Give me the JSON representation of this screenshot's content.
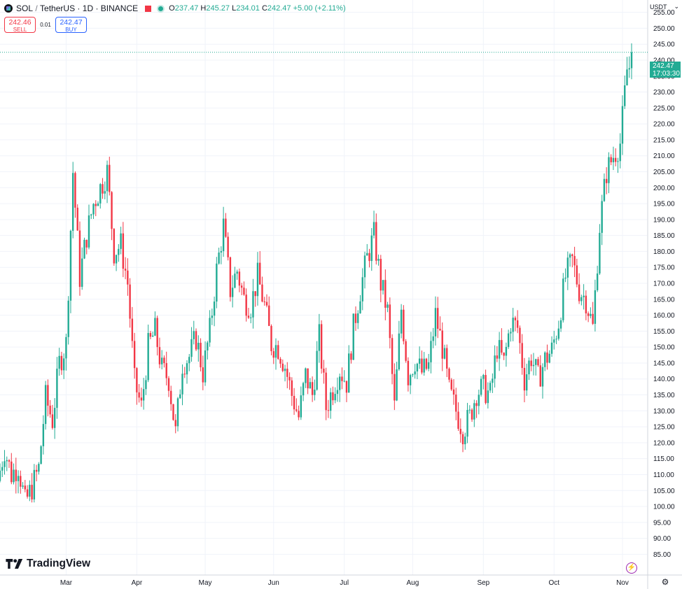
{
  "header": {
    "symbol": "SOL",
    "quote": "TetherUS",
    "interval": "1D",
    "exchange": "BINANCE",
    "sep1": "/",
    "sep2": "·",
    "sep3": "·",
    "open_key": "O",
    "open": "237.47",
    "high_key": "H",
    "high": "245.27",
    "low_key": "L",
    "low": "234.01",
    "close_key": "C",
    "close": "242.47",
    "change": "+5.00 (+2.11%)"
  },
  "trade": {
    "sell_price": "242.46",
    "sell_label": "SELL",
    "spread": "0.01",
    "buy_price": "242.47",
    "buy_label": "BUY"
  },
  "currency": "USDT",
  "last_price": "242.47",
  "countdown": "17:03:30",
  "branding": "TradingView",
  "icons": {
    "symbol": "solana-logo-icon",
    "flag": "flag-icon",
    "status": "market-open-dot-icon",
    "currency_menu": "chevron-down-icon",
    "bolt": "lightning-icon",
    "settings": "gear-icon",
    "logo": "tradingview-logo-icon"
  },
  "colors": {
    "up": "#22ab94",
    "down": "#f23645",
    "grid": "#f0f3fa",
    "axis_text": "#131722",
    "price_line": "#22ab94"
  },
  "chart_data": {
    "type": "candlestick",
    "y_ticks": [
      85,
      90,
      95,
      100,
      105,
      110,
      115,
      120,
      125,
      130,
      135,
      140,
      145,
      150,
      155,
      160,
      165,
      170,
      175,
      180,
      185,
      190,
      195,
      200,
      205,
      210,
      215,
      220,
      225,
      230,
      235,
      240,
      245,
      250,
      255
    ],
    "ylim": [
      83,
      259
    ],
    "x_ticks": [
      "Mar",
      "Apr",
      "May",
      "Jun",
      "Jul",
      "Aug",
      "Sep",
      "Oct",
      "Nov"
    ],
    "x_range_days": [
      0,
      280
    ],
    "x_tick_days": [
      29,
      60,
      90,
      120,
      151,
      181,
      212,
      243,
      273
    ],
    "grid": true,
    "series": [
      {
        "day": 0,
        "close": 108
      },
      {
        "day": 3,
        "close": 118
      },
      {
        "day": 6,
        "close": 110
      },
      {
        "day": 9,
        "close": 113
      },
      {
        "day": 12,
        "close": 101
      },
      {
        "day": 15,
        "close": 106
      },
      {
        "day": 18,
        "close": 112
      },
      {
        "day": 21,
        "close": 134
      },
      {
        "day": 24,
        "close": 127
      },
      {
        "day": 27,
        "close": 145
      },
      {
        "day": 30,
        "close": 151
      },
      {
        "day": 33,
        "close": 205
      },
      {
        "day": 36,
        "close": 172
      },
      {
        "day": 39,
        "close": 185
      },
      {
        "day": 42,
        "close": 195
      },
      {
        "day": 45,
        "close": 200
      },
      {
        "day": 48,
        "close": 205
      },
      {
        "day": 51,
        "close": 180
      },
      {
        "day": 54,
        "close": 182
      },
      {
        "day": 57,
        "close": 170
      },
      {
        "day": 60,
        "close": 139
      },
      {
        "day": 63,
        "close": 131
      },
      {
        "day": 66,
        "close": 150
      },
      {
        "day": 69,
        "close": 155
      },
      {
        "day": 72,
        "close": 143
      },
      {
        "day": 75,
        "close": 140
      },
      {
        "day": 78,
        "close": 123
      },
      {
        "day": 81,
        "close": 145
      },
      {
        "day": 84,
        "close": 147
      },
      {
        "day": 87,
        "close": 153
      },
      {
        "day": 90,
        "close": 142
      },
      {
        "day": 93,
        "close": 155
      },
      {
        "day": 96,
        "close": 174
      },
      {
        "day": 99,
        "close": 188
      },
      {
        "day": 102,
        "close": 168
      },
      {
        "day": 105,
        "close": 174
      },
      {
        "day": 108,
        "close": 165
      },
      {
        "day": 111,
        "close": 163
      },
      {
        "day": 114,
        "close": 172
      },
      {
        "day": 117,
        "close": 163
      },
      {
        "day": 120,
        "close": 151
      },
      {
        "day": 123,
        "close": 150
      },
      {
        "day": 126,
        "close": 144
      },
      {
        "day": 129,
        "close": 135
      },
      {
        "day": 132,
        "close": 128
      },
      {
        "day": 135,
        "close": 141
      },
      {
        "day": 138,
        "close": 135
      },
      {
        "day": 141,
        "close": 153
      },
      {
        "day": 144,
        "close": 131
      },
      {
        "day": 147,
        "close": 137
      },
      {
        "day": 150,
        "close": 143
      },
      {
        "day": 153,
        "close": 139
      },
      {
        "day": 156,
        "close": 156
      },
      {
        "day": 159,
        "close": 168
      },
      {
        "day": 162,
        "close": 178
      },
      {
        "day": 165,
        "close": 185
      },
      {
        "day": 168,
        "close": 170
      },
      {
        "day": 171,
        "close": 161
      },
      {
        "day": 174,
        "close": 131
      },
      {
        "day": 177,
        "close": 162
      },
      {
        "day": 180,
        "close": 141
      },
      {
        "day": 183,
        "close": 146
      },
      {
        "day": 186,
        "close": 142
      },
      {
        "day": 189,
        "close": 144
      },
      {
        "day": 192,
        "close": 160
      },
      {
        "day": 195,
        "close": 150
      },
      {
        "day": 198,
        "close": 136
      },
      {
        "day": 201,
        "close": 130
      },
      {
        "day": 204,
        "close": 124
      },
      {
        "day": 207,
        "close": 128
      },
      {
        "day": 210,
        "close": 136
      },
      {
        "day": 213,
        "close": 137
      },
      {
        "day": 216,
        "close": 135
      },
      {
        "day": 219,
        "close": 150
      },
      {
        "day": 222,
        "close": 145
      },
      {
        "day": 225,
        "close": 158
      },
      {
        "day": 228,
        "close": 156
      },
      {
        "day": 231,
        "close": 140
      },
      {
        "day": 234,
        "close": 147
      },
      {
        "day": 237,
        "close": 140
      },
      {
        "day": 240,
        "close": 146
      },
      {
        "day": 243,
        "close": 149
      },
      {
        "day": 246,
        "close": 158
      },
      {
        "day": 249,
        "close": 172
      },
      {
        "day": 252,
        "close": 177
      },
      {
        "day": 255,
        "close": 168
      },
      {
        "day": 258,
        "close": 165
      },
      {
        "day": 261,
        "close": 156
      },
      {
        "day": 264,
        "close": 188
      },
      {
        "day": 267,
        "close": 205
      },
      {
        "day": 270,
        "close": 210
      },
      {
        "day": 273,
        "close": 214
      },
      {
        "day": 276,
        "close": 237
      },
      {
        "day": 277,
        "close": 242.47
      }
    ]
  }
}
